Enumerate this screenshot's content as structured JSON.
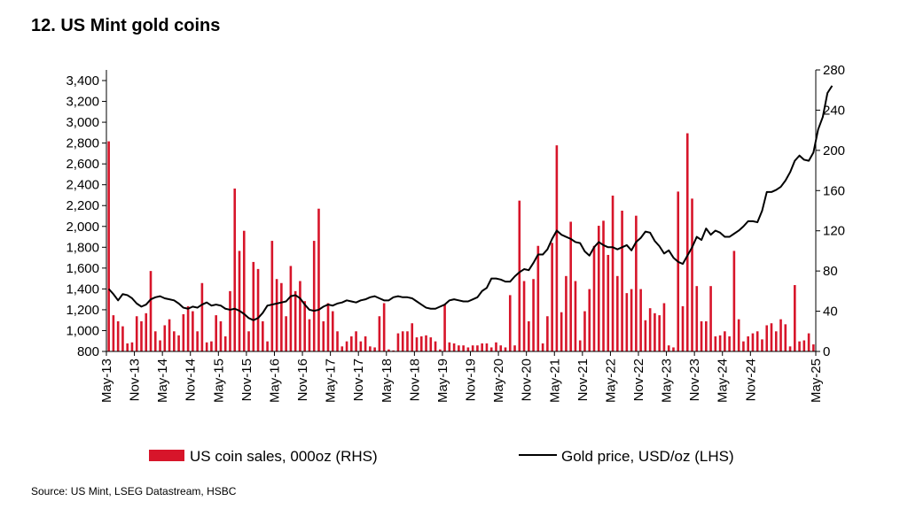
{
  "title": "12. US Mint gold coins",
  "source": "Source: US Mint, LSEG Datastream, HSBC",
  "chart_data": {
    "type": "bar+line",
    "series": [
      {
        "name": "US coin sales, 000oz (RHS)",
        "type": "bar",
        "axis": "right",
        "color": "#d7152a",
        "values": [
          209,
          36,
          30,
          25,
          8,
          9,
          35,
          30,
          38,
          80,
          20,
          11,
          26,
          32,
          20,
          16,
          37,
          45,
          40,
          20,
          68,
          9,
          10,
          36,
          30,
          15,
          60,
          162,
          100,
          120,
          20,
          89,
          82,
          30,
          10,
          110,
          72,
          68,
          35,
          85,
          60,
          70,
          50,
          32,
          110,
          142,
          30,
          48,
          40,
          20,
          5,
          10,
          15,
          20,
          10,
          15,
          5,
          4,
          35,
          48,
          2,
          1,
          18,
          20,
          20,
          28,
          14,
          15,
          16,
          14,
          10,
          2,
          47,
          9,
          8,
          6,
          6,
          4,
          6,
          6,
          8,
          8,
          4,
          9,
          6,
          4,
          56,
          6,
          150,
          70,
          30,
          72,
          105,
          8,
          35,
          108,
          205,
          39,
          75,
          129,
          70,
          11,
          40,
          62,
          105,
          125,
          130,
          96,
          155,
          75,
          140,
          58,
          62,
          135,
          62,
          31,
          43,
          38,
          36,
          48,
          6,
          4,
          159,
          45,
          217,
          152,
          65,
          30,
          30,
          65,
          15,
          16,
          20,
          15,
          100,
          32,
          10,
          15,
          18,
          20,
          12,
          26,
          28,
          20,
          32,
          27,
          5,
          66,
          10,
          11,
          18,
          7
        ]
      },
      {
        "name": "Gold price, USD/oz (LHS)",
        "type": "line",
        "axis": "left",
        "color": "#000000",
        "values": [
          1400,
          1350,
          1290,
          1350,
          1340,
          1310,
          1260,
          1230,
          1250,
          1300,
          1320,
          1330,
          1310,
          1300,
          1290,
          1260,
          1220,
          1210,
          1230,
          1220,
          1250,
          1270,
          1240,
          1250,
          1240,
          1210,
          1200,
          1210,
          1190,
          1160,
          1120,
          1100,
          1120,
          1170,
          1240,
          1250,
          1260,
          1270,
          1280,
          1330,
          1340,
          1310,
          1250,
          1200,
          1190,
          1200,
          1230,
          1250,
          1240,
          1260,
          1270,
          1290,
          1280,
          1270,
          1290,
          1300,
          1320,
          1330,
          1310,
          1290,
          1290,
          1320,
          1330,
          1320,
          1320,
          1310,
          1280,
          1250,
          1220,
          1210,
          1210,
          1230,
          1250,
          1290,
          1300,
          1290,
          1280,
          1280,
          1300,
          1320,
          1380,
          1410,
          1500,
          1500,
          1490,
          1470,
          1470,
          1520,
          1560,
          1590,
          1580,
          1650,
          1730,
          1730,
          1780,
          1880,
          1960,
          1920,
          1900,
          1880,
          1850,
          1840,
          1760,
          1720,
          1800,
          1850,
          1820,
          1800,
          1800,
          1780,
          1800,
          1820,
          1770,
          1850,
          1890,
          1950,
          1940,
          1860,
          1810,
          1740,
          1770,
          1700,
          1660,
          1640,
          1720,
          1800,
          1900,
          1870,
          1980,
          1920,
          1960,
          1940,
          1900,
          1900,
          1930,
          1960,
          2000,
          2050,
          2050,
          2040,
          2150,
          2330,
          2330,
          2350,
          2380,
          2440,
          2520,
          2630,
          2680,
          2640,
          2630,
          2710,
          2930,
          3050,
          3280,
          3350
        ]
      }
    ],
    "x_tick_labels": [
      "May-13",
      "Nov-13",
      "May-14",
      "Nov-14",
      "May-15",
      "Nov-15",
      "May-16",
      "Nov-16",
      "May-17",
      "Nov-17",
      "May-18",
      "Nov-18",
      "May-19",
      "Nov-19",
      "May-20",
      "Nov-20",
      "May-21",
      "Nov-21",
      "May-22",
      "Nov-22",
      "May-23",
      "Nov-23",
      "May-24",
      "Nov-24",
      "May-25"
    ],
    "y_left": {
      "min": 800,
      "max": 3400,
      "step": 200,
      "labels": [
        "800",
        "1,000",
        "1,200",
        "1,400",
        "1,600",
        "1,800",
        "2,000",
        "2,200",
        "2,400",
        "2,600",
        "2,800",
        "3,000",
        "3,200",
        "3,400"
      ]
    },
    "y_right": {
      "min": 0,
      "max": 280,
      "step": 40,
      "labels": [
        "0",
        "40",
        "80",
        "120",
        "160",
        "200",
        "240",
        "280"
      ]
    },
    "legend_position": "bottom"
  }
}
